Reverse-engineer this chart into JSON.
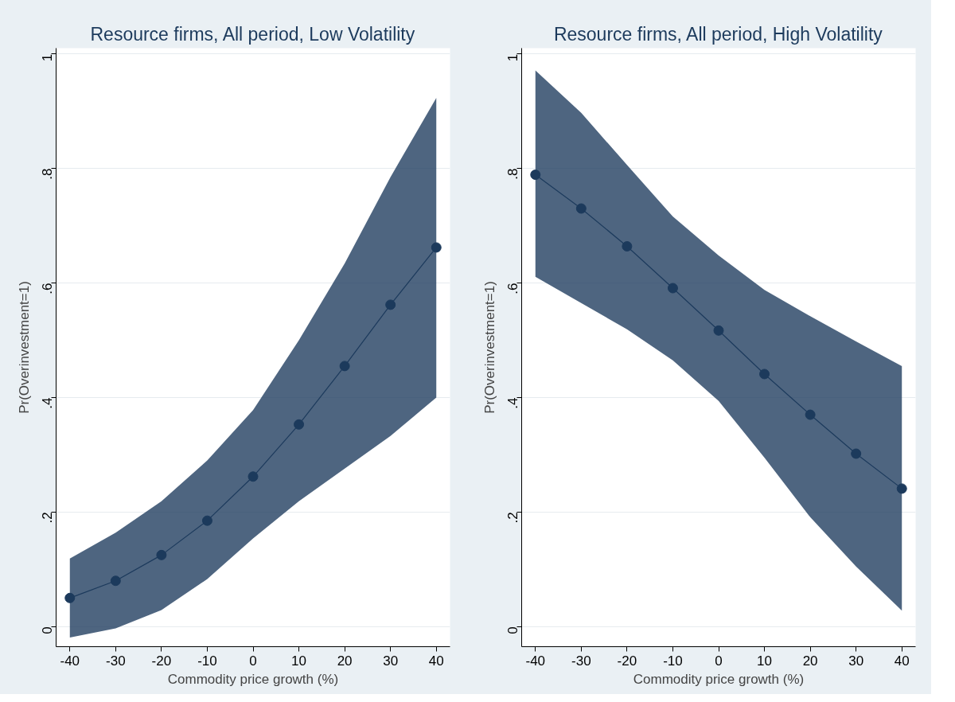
{
  "chart_data": [
    {
      "type": "line",
      "title": "Resource firms, All period, Low Volatility",
      "xlabel": "Commodity price growth (%)",
      "ylabel": "Pr(Overinvestment=1)",
      "x": [
        -40,
        -30,
        -20,
        -10,
        0,
        10,
        20,
        30,
        40
      ],
      "xlim": [
        -43,
        43
      ],
      "xticks": [
        -40,
        -30,
        -20,
        -10,
        0,
        10,
        20,
        30,
        40
      ],
      "ylim": [
        -0.035,
        1.01
      ],
      "yticks": [
        0,
        {
          "value": 0.2,
          "label": ".2"
        },
        {
          "value": 0.4,
          "label": ".4"
        },
        {
          "value": 0.6,
          "label": ".6"
        },
        {
          "value": 0.8,
          "label": ".8"
        },
        1
      ],
      "grid": "y",
      "marker": "circle",
      "series": [
        {
          "color": "#1c3a5c",
          "values": [
            0.05,
            0.08,
            0.125,
            0.185,
            0.262,
            0.353,
            0.455,
            0.562,
            0.662
          ],
          "lower": [
            -0.019,
            -0.003,
            0.029,
            0.083,
            0.154,
            0.219,
            0.276,
            0.333,
            0.4
          ],
          "upper": [
            0.119,
            0.164,
            0.219,
            0.29,
            0.378,
            0.5,
            0.634,
            0.785,
            0.923
          ]
        }
      ]
    },
    {
      "type": "line",
      "title": "Resource firms, All period, High Volatility",
      "xlabel": "Commodity price growth (%)",
      "ylabel": "Pr(Overinvestment=1)",
      "x": [
        -40,
        -30,
        -20,
        -10,
        0,
        10,
        20,
        30,
        40
      ],
      "xlim": [
        -43,
        43
      ],
      "xticks": [
        -40,
        -30,
        -20,
        -10,
        0,
        10,
        20,
        30,
        40
      ],
      "ylim": [
        -0.035,
        1.01
      ],
      "yticks": [
        0,
        {
          "value": 0.2,
          "label": ".2"
        },
        {
          "value": 0.4,
          "label": ".4"
        },
        {
          "value": 0.6,
          "label": ".6"
        },
        {
          "value": 0.8,
          "label": ".8"
        },
        1
      ],
      "grid": "y",
      "marker": "circle",
      "series": [
        {
          "color": "#1c3a5c",
          "values": [
            0.789,
            0.73,
            0.664,
            0.591,
            0.517,
            0.441,
            0.37,
            0.302,
            0.241
          ],
          "lower": [
            0.611,
            0.565,
            0.519,
            0.465,
            0.394,
            0.295,
            0.191,
            0.105,
            0.028
          ],
          "upper": [
            0.971,
            0.897,
            0.806,
            0.716,
            0.648,
            0.588,
            0.542,
            0.498,
            0.455
          ]
        }
      ]
    }
  ]
}
